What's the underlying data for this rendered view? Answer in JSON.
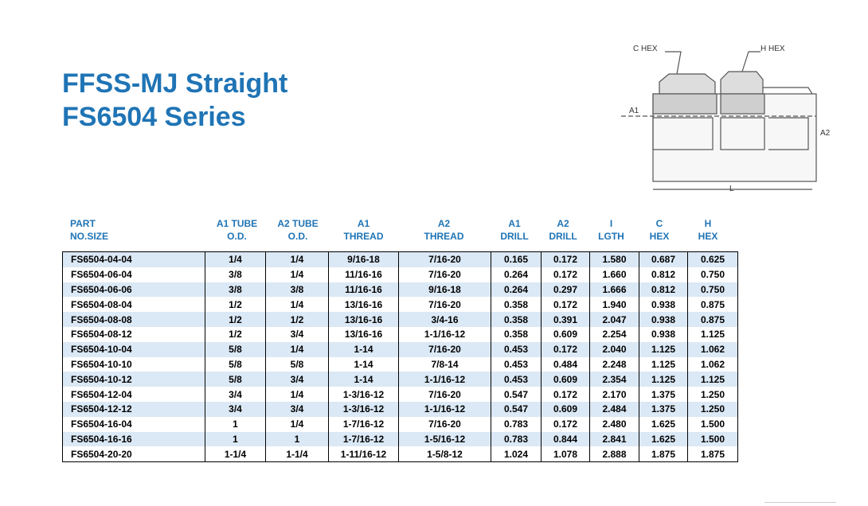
{
  "header": {
    "title": "FFSS-MJ Straight",
    "subtitle": "FS6504 Series"
  },
  "diagram": {
    "labels": [
      "C HEX",
      "H HEX",
      "A1",
      "A2",
      "L"
    ]
  },
  "table": {
    "columns": [
      [
        "PART",
        "NO.SIZE"
      ],
      [
        "A1 TUBE",
        "O.D."
      ],
      [
        "A2 TUBE",
        "O.D."
      ],
      [
        "A1",
        "THREAD"
      ],
      [
        "A2",
        "THREAD"
      ],
      [
        "A1",
        "DRILL"
      ],
      [
        "A2",
        "DRILL"
      ],
      [
        "I",
        "LGTH"
      ],
      [
        "C",
        "HEX"
      ],
      [
        "H",
        "HEX"
      ]
    ],
    "rows": [
      [
        "FS6504-04-04",
        "1/4",
        "1/4",
        "9/16-18",
        "7/16-20",
        "0.165",
        "0.172",
        "1.580",
        "0.687",
        "0.625"
      ],
      [
        "FS6504-06-04",
        "3/8",
        "1/4",
        "11/16-16",
        "7/16-20",
        "0.264",
        "0.172",
        "1.660",
        "0.812",
        "0.750"
      ],
      [
        "FS6504-06-06",
        "3/8",
        "3/8",
        "11/16-16",
        "9/16-18",
        "0.264",
        "0.297",
        "1.666",
        "0.812",
        "0.750"
      ],
      [
        "FS6504-08-04",
        "1/2",
        "1/4",
        "13/16-16",
        "7/16-20",
        "0.358",
        "0.172",
        "1.940",
        "0.938",
        "0.875"
      ],
      [
        "FS6504-08-08",
        "1/2",
        "1/2",
        "13/16-16",
        "3/4-16",
        "0.358",
        "0.391",
        "2.047",
        "0.938",
        "0.875"
      ],
      [
        "FS6504-08-12",
        "1/2",
        "3/4",
        "13/16-16",
        "1-1/16-12",
        "0.358",
        "0.609",
        "2.254",
        "0.938",
        "1.125"
      ],
      [
        "FS6504-10-04",
        "5/8",
        "1/4",
        "1-14",
        "7/16-20",
        "0.453",
        "0.172",
        "2.040",
        "1.125",
        "1.062"
      ],
      [
        "FS6504-10-10",
        "5/8",
        "5/8",
        "1-14",
        "7/8-14",
        "0.453",
        "0.484",
        "2.248",
        "1.125",
        "1.062"
      ],
      [
        "FS6504-10-12",
        "5/8",
        "3/4",
        "1-14",
        "1-1/16-12",
        "0.453",
        "0.609",
        "2.354",
        "1.125",
        "1.125"
      ],
      [
        "FS6504-12-04",
        "3/4",
        "1/4",
        "1-3/16-12",
        "7/16-20",
        "0.547",
        "0.172",
        "2.170",
        "1.375",
        "1.250"
      ],
      [
        "FS6504-12-12",
        "3/4",
        "3/4",
        "1-3/16-12",
        "1-1/16-12",
        "0.547",
        "0.609",
        "2.484",
        "1.375",
        "1.250"
      ],
      [
        "FS6504-16-04",
        "1",
        "1/4",
        "1-7/16-12",
        "7/16-20",
        "0.783",
        "0.172",
        "2.480",
        "1.625",
        "1.500"
      ],
      [
        "FS6504-16-16",
        "1",
        "1",
        "1-7/16-12",
        "1-5/16-12",
        "0.783",
        "0.844",
        "2.841",
        "1.625",
        "1.500"
      ],
      [
        "FS6504-20-20",
        "1-1/4",
        "1-1/4",
        "1-11/16-12",
        "1-5/8-12",
        "1.024",
        "1.078",
        "2.888",
        "1.875",
        "1.875"
      ]
    ]
  }
}
